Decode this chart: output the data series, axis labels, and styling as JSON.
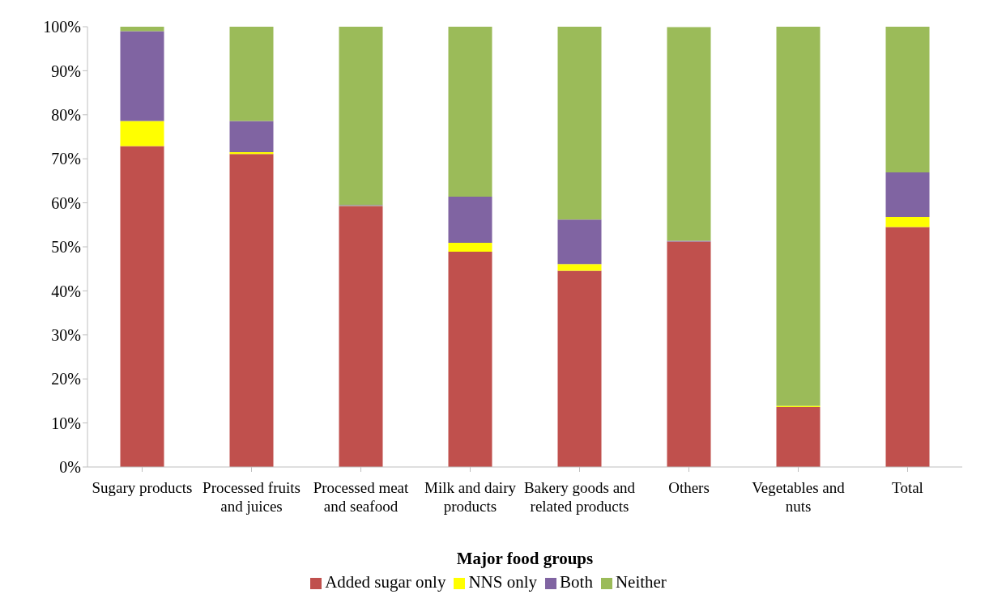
{
  "chart_data": {
    "type": "bar",
    "stacked": true,
    "xlabel": "Major food groups",
    "categories": [
      "Sugary products",
      "Processed fruits and juices",
      "Processed meat and seafood",
      "Milk and dairy products",
      "Bakery goods and related products",
      "Others",
      "Vegetables and nuts",
      "Total"
    ],
    "series": [
      {
        "name": "Added sugar only",
        "color": "#c0504d",
        "values": [
          72.9,
          71.1,
          59.2,
          48.9,
          44.6,
          51.2,
          13.6,
          54.5
        ]
      },
      {
        "name": "NNS only",
        "color": "#ffff00",
        "values": [
          5.7,
          0.4,
          0.1,
          2.0,
          1.5,
          null,
          0.3,
          2.3
        ]
      },
      {
        "name": "Both",
        "color": "#8064a2",
        "values": [
          20.4,
          7.1,
          0.2,
          10.5,
          10.1,
          0.2,
          0,
          10.1
        ]
      },
      {
        "name": "Neither",
        "color": "#9bbb59",
        "values": [
          1.0,
          21.4,
          40.5,
          38.6,
          43.8,
          48.5,
          86.1,
          33.1
        ]
      }
    ],
    "ylim": [
      0,
      100
    ],
    "yticks": [
      {
        "value": 0,
        "label": "0%"
      },
      {
        "value": 10,
        "label": "10%"
      },
      {
        "value": 20,
        "label": "20%"
      },
      {
        "value": 30,
        "label": "30%"
      },
      {
        "value": 40,
        "label": "40%"
      },
      {
        "value": 50,
        "label": "50%"
      },
      {
        "value": 60,
        "label": "60%"
      },
      {
        "value": 70,
        "label": "70%"
      },
      {
        "value": 80,
        "label": "80%"
      },
      {
        "value": 90,
        "label": "90%"
      },
      {
        "value": 100,
        "label": "100%"
      }
    ],
    "legend": "bottom"
  }
}
